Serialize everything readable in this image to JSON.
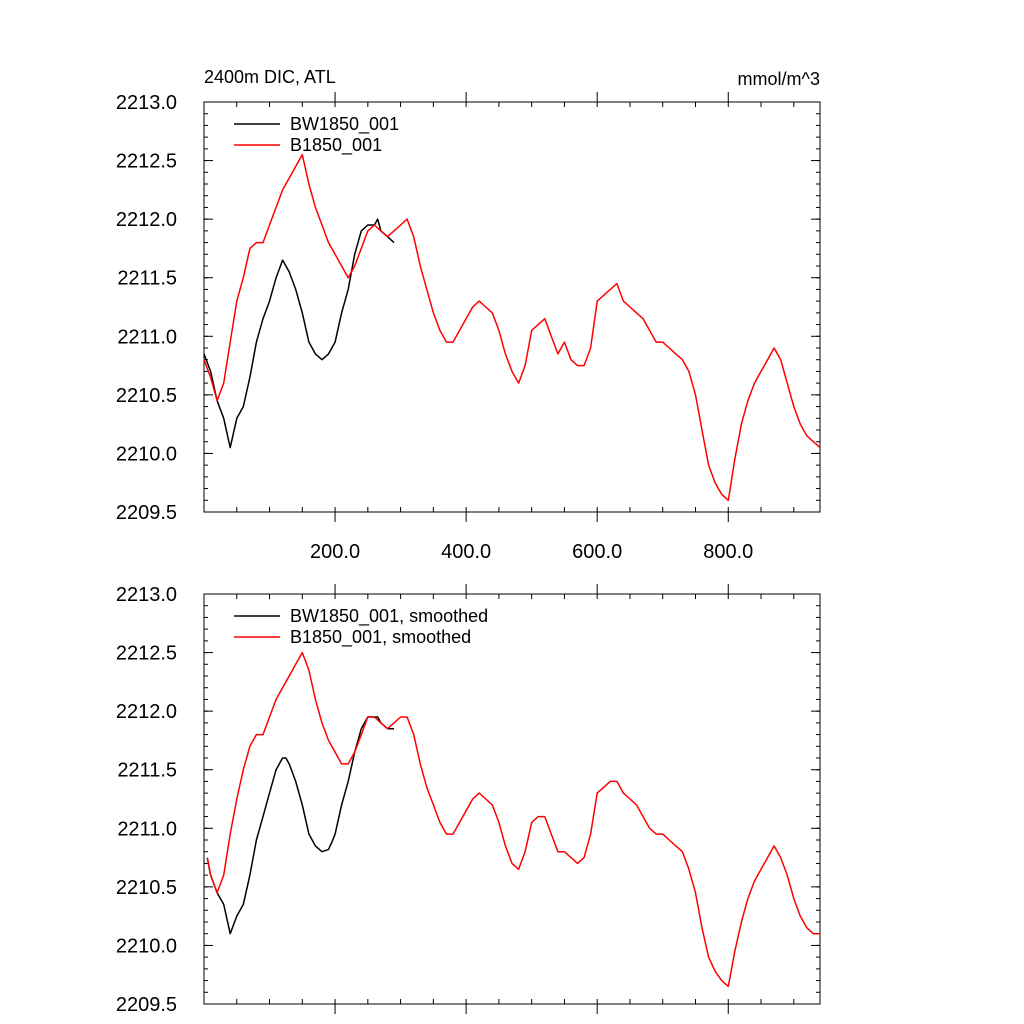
{
  "figure": {
    "title_left": "2400m DIC, ATL",
    "title_right": "mmol/m^3"
  },
  "chart_data": [
    {
      "type": "line",
      "title": "2400m DIC, ATL",
      "units": "mmol/m^3",
      "xlim": [
        0,
        940
      ],
      "ylim": [
        2209.5,
        2213.0
      ],
      "x_ticks": [
        200,
        400,
        600,
        800
      ],
      "x_tick_labels": [
        "200.0",
        "400.0",
        "600.0",
        "800.0"
      ],
      "y_ticks": [
        2209.5,
        2210.0,
        2210.5,
        2211.0,
        2211.5,
        2212.0,
        2212.5,
        2213.0
      ],
      "y_tick_labels": [
        "2209.5",
        "2210.0",
        "2210.5",
        "2211.0",
        "2211.5",
        "2212.0",
        "2212.5",
        "2213.0"
      ],
      "legend_position": "top-left",
      "grid": false,
      "series": [
        {
          "name": "BW1850_001",
          "color": "#000000",
          "x": [
            0,
            10,
            20,
            30,
            40,
            50,
            60,
            70,
            80,
            90,
            100,
            110,
            120,
            125,
            130,
            140,
            150,
            160,
            170,
            180,
            190,
            195,
            200,
            210,
            220,
            230,
            240,
            250,
            260,
            265,
            270,
            280,
            290
          ],
          "y": [
            2210.85,
            2210.7,
            2210.45,
            2210.3,
            2210.05,
            2210.3,
            2210.4,
            2210.65,
            2210.95,
            2211.15,
            2211.3,
            2211.5,
            2211.65,
            2211.6,
            2211.55,
            2211.4,
            2211.2,
            2210.95,
            2210.85,
            2210.8,
            2210.85,
            2210.9,
            2210.95,
            2211.2,
            2211.4,
            2211.7,
            2211.9,
            2211.95,
            2211.95,
            2212.0,
            2211.9,
            2211.85,
            2211.8
          ]
        },
        {
          "name": "B1850_001",
          "color": "#ff0000",
          "x": [
            0,
            10,
            20,
            30,
            40,
            50,
            60,
            70,
            80,
            90,
            100,
            110,
            120,
            130,
            140,
            150,
            160,
            170,
            180,
            190,
            200,
            210,
            220,
            230,
            240,
            250,
            260,
            270,
            280,
            290,
            300,
            310,
            320,
            330,
            340,
            350,
            360,
            370,
            380,
            390,
            400,
            410,
            420,
            430,
            440,
            450,
            460,
            470,
            480,
            490,
            500,
            510,
            520,
            530,
            540,
            550,
            560,
            570,
            580,
            590,
            600,
            610,
            620,
            630,
            640,
            650,
            660,
            670,
            680,
            690,
            700,
            710,
            720,
            730,
            740,
            750,
            760,
            770,
            780,
            790,
            800,
            810,
            820,
            830,
            840,
            850,
            860,
            870,
            880,
            890,
            900,
            910,
            920,
            930,
            940
          ],
          "y": [
            2210.8,
            2210.65,
            2210.45,
            2210.6,
            2210.95,
            2211.3,
            2211.5,
            2211.75,
            2211.8,
            2211.8,
            2211.95,
            2212.1,
            2212.25,
            2212.35,
            2212.45,
            2212.55,
            2212.3,
            2212.1,
            2211.95,
            2211.8,
            2211.7,
            2211.6,
            2211.5,
            2211.6,
            2211.75,
            2211.9,
            2211.95,
            2211.9,
            2211.85,
            2211.9,
            2211.95,
            2212.0,
            2211.85,
            2211.6,
            2211.4,
            2211.2,
            2211.05,
            2210.95,
            2210.95,
            2211.05,
            2211.15,
            2211.25,
            2211.3,
            2211.25,
            2211.2,
            2211.05,
            2210.85,
            2210.7,
            2210.6,
            2210.75,
            2211.05,
            2211.1,
            2211.15,
            2211.0,
            2210.85,
            2210.95,
            2210.8,
            2210.75,
            2210.75,
            2210.9,
            2211.3,
            2211.35,
            2211.4,
            2211.45,
            2211.3,
            2211.25,
            2211.2,
            2211.15,
            2211.05,
            2210.95,
            2210.95,
            2210.9,
            2210.85,
            2210.8,
            2210.7,
            2210.5,
            2210.2,
            2209.9,
            2209.75,
            2209.65,
            2209.6,
            2209.95,
            2210.25,
            2210.45,
            2210.6,
            2210.7,
            2210.8,
            2210.9,
            2210.8,
            2210.6,
            2210.4,
            2210.25,
            2210.15,
            2210.1,
            2210.05
          ]
        }
      ]
    },
    {
      "type": "line",
      "xlim": [
        0,
        940
      ],
      "ylim": [
        2209.5,
        2213.0
      ],
      "x_ticks": [
        200,
        400,
        600,
        800
      ],
      "y_ticks": [
        2209.5,
        2210.0,
        2210.5,
        2211.0,
        2211.5,
        2212.0,
        2212.5,
        2213.0
      ],
      "y_tick_labels": [
        "2209.5",
        "2210.0",
        "2210.5",
        "2211.0",
        "2211.5",
        "2212.0",
        "2212.5",
        "2213.0"
      ],
      "legend_position": "top-left",
      "grid": false,
      "series": [
        {
          "name": "BW1850_001, smoothed",
          "color": "#000000",
          "x": [
            5,
            10,
            20,
            30,
            40,
            50,
            60,
            70,
            80,
            90,
            100,
            110,
            120,
            125,
            130,
            140,
            150,
            160,
            170,
            180,
            190,
            195,
            200,
            210,
            220,
            230,
            240,
            250,
            260,
            265,
            270,
            280,
            290
          ],
          "y": [
            2210.75,
            2210.6,
            2210.45,
            2210.35,
            2210.1,
            2210.25,
            2210.35,
            2210.6,
            2210.9,
            2211.1,
            2211.3,
            2211.5,
            2211.6,
            2211.6,
            2211.55,
            2211.4,
            2211.2,
            2210.95,
            2210.85,
            2210.8,
            2210.82,
            2210.88,
            2210.95,
            2211.2,
            2211.4,
            2211.65,
            2211.85,
            2211.95,
            2211.95,
            2211.95,
            2211.9,
            2211.85,
            2211.85
          ]
        },
        {
          "name": "B1850_001, smoothed",
          "color": "#ff0000",
          "x": [
            5,
            10,
            20,
            30,
            40,
            50,
            60,
            70,
            80,
            90,
            100,
            110,
            120,
            130,
            140,
            150,
            160,
            170,
            180,
            190,
            200,
            210,
            220,
            230,
            240,
            250,
            260,
            270,
            280,
            290,
            300,
            310,
            320,
            330,
            340,
            350,
            360,
            370,
            380,
            390,
            400,
            410,
            420,
            430,
            440,
            450,
            460,
            470,
            480,
            490,
            500,
            510,
            520,
            530,
            540,
            550,
            560,
            570,
            580,
            590,
            600,
            610,
            620,
            630,
            640,
            650,
            660,
            670,
            680,
            690,
            700,
            710,
            720,
            730,
            740,
            750,
            760,
            770,
            780,
            790,
            800,
            810,
            820,
            830,
            840,
            850,
            860,
            870,
            880,
            890,
            900,
            910,
            920,
            930,
            940
          ],
          "y": [
            2210.75,
            2210.6,
            2210.45,
            2210.6,
            2210.95,
            2211.25,
            2211.5,
            2211.7,
            2211.8,
            2211.8,
            2211.95,
            2212.1,
            2212.2,
            2212.3,
            2212.4,
            2212.5,
            2212.35,
            2212.1,
            2211.9,
            2211.75,
            2211.65,
            2211.55,
            2211.55,
            2211.65,
            2211.8,
            2211.95,
            2211.95,
            2211.9,
            2211.85,
            2211.9,
            2211.95,
            2211.95,
            2211.8,
            2211.55,
            2211.35,
            2211.2,
            2211.05,
            2210.95,
            2210.95,
            2211.05,
            2211.15,
            2211.25,
            2211.3,
            2211.25,
            2211.2,
            2211.05,
            2210.85,
            2210.7,
            2210.65,
            2210.8,
            2211.05,
            2211.1,
            2211.1,
            2210.95,
            2210.8,
            2210.8,
            2210.75,
            2210.7,
            2210.75,
            2210.95,
            2211.3,
            2211.35,
            2211.4,
            2211.4,
            2211.3,
            2211.25,
            2211.2,
            2211.1,
            2211.0,
            2210.95,
            2210.95,
            2210.9,
            2210.85,
            2210.8,
            2210.65,
            2210.45,
            2210.15,
            2209.9,
            2209.78,
            2209.7,
            2209.65,
            2209.95,
            2210.2,
            2210.4,
            2210.55,
            2210.65,
            2210.75,
            2210.85,
            2210.75,
            2210.6,
            2210.4,
            2210.25,
            2210.15,
            2210.1,
            2210.1
          ]
        }
      ]
    }
  ]
}
